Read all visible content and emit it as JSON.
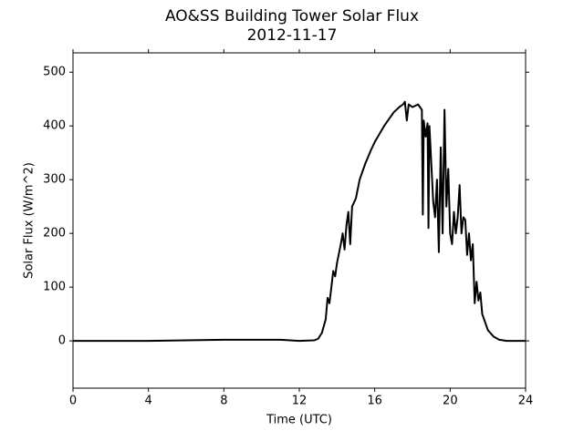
{
  "chart_data": {
    "type": "line",
    "title": "AO&SS Building Tower Solar Flux",
    "subtitle": "2012-11-17",
    "xlabel": "Time (UTC)",
    "ylabel": "Solar Flux (W/m^2)",
    "x": [
      0,
      4,
      6,
      8,
      11,
      12,
      12.8,
      13,
      13.2,
      13.4,
      13.5,
      13.6,
      13.8,
      13.9,
      14.0,
      14.2,
      14.3,
      14.4,
      14.5,
      14.6,
      14.7,
      14.8,
      15.0,
      15.2,
      15.5,
      15.8,
      16,
      16.5,
      16.8,
      17,
      17.3,
      17.5,
      17.6,
      17.7,
      17.8,
      18,
      18.3,
      18.5,
      18.55,
      18.6,
      18.7,
      18.8,
      18.85,
      18.9,
      19,
      19.1,
      19.2,
      19.3,
      19.4,
      19.5,
      19.6,
      19.7,
      19.8,
      19.9,
      20,
      20.1,
      20.2,
      20.3,
      20.4,
      20.5,
      20.6,
      20.7,
      20.8,
      20.9,
      21,
      21.1,
      21.2,
      21.3,
      21.4,
      21.5,
      21.6,
      21.7,
      21.8,
      22,
      22.3,
      22.6,
      23,
      24
    ],
    "series": [
      {
        "name": "Solar Flux",
        "color": "#000000",
        "values": [
          0,
          0,
          1,
          2,
          2,
          0,
          1,
          4,
          15,
          40,
          80,
          70,
          130,
          120,
          145,
          180,
          200,
          170,
          215,
          240,
          180,
          250,
          265,
          300,
          330,
          355,
          370,
          400,
          415,
          425,
          435,
          440,
          445,
          410,
          440,
          435,
          440,
          430,
          235,
          410,
          380,
          405,
          210,
          400,
          330,
          260,
          230,
          300,
          165,
          360,
          200,
          430,
          250,
          320,
          200,
          180,
          240,
          200,
          230,
          290,
          200,
          230,
          225,
          160,
          200,
          150,
          180,
          70,
          110,
          75,
          90,
          50,
          40,
          20,
          8,
          2,
          0,
          0
        ]
      }
    ],
    "xlim": [
      0,
      24
    ],
    "xticks": [
      0,
      4,
      8,
      12,
      16,
      20,
      24
    ],
    "ylim": [
      -88,
      536
    ],
    "yticks": [
      0,
      100,
      200,
      300,
      400,
      500
    ]
  }
}
